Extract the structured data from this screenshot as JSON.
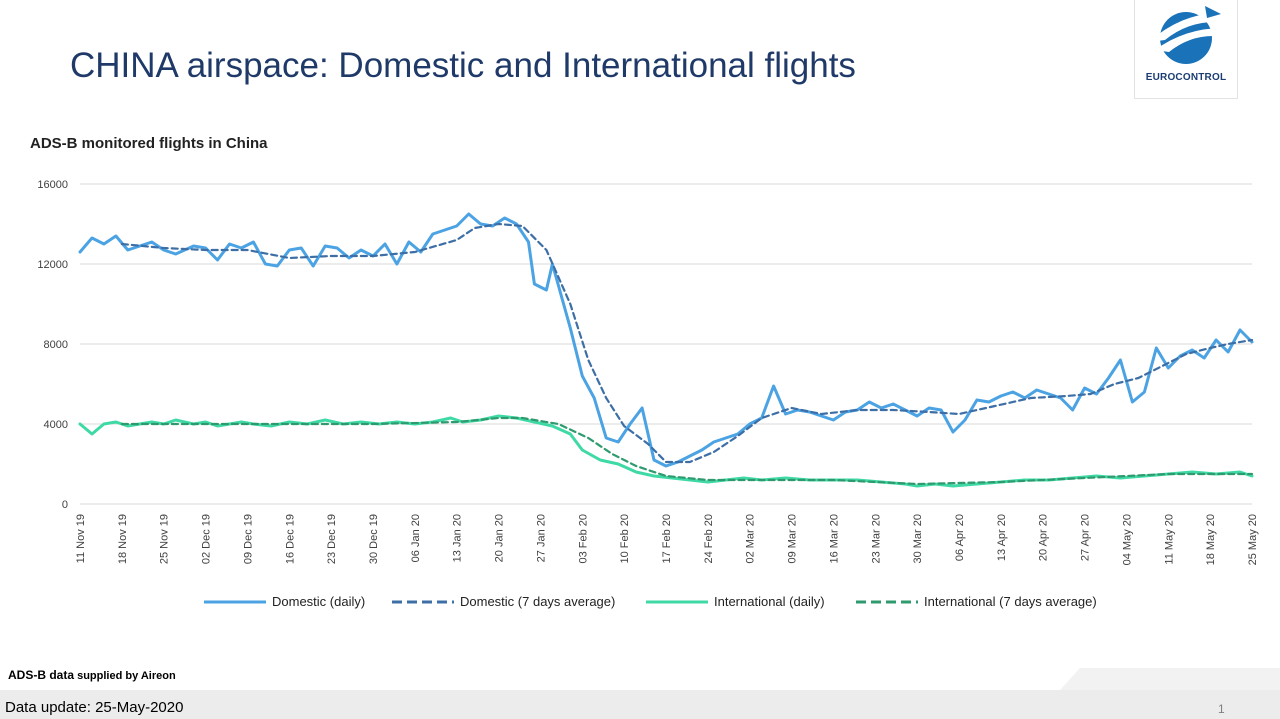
{
  "slide": {
    "title": "CHINA airspace: Domestic and International flights",
    "logo_text": "EUROCONTROL",
    "source_prefix": "ADS-B data",
    "source_suffix": " supplied by Aireon",
    "update_note": "Data update: 25-May-2020",
    "page_number": "1"
  },
  "colors": {
    "title": "#1f3a68",
    "domestic_daily": "#4ba3e3",
    "domestic_avg": "#3d6fa6",
    "international_daily": "#3fd9a5",
    "international_avg": "#2f9a6e",
    "grid": "#d9d9d9"
  },
  "chart_data": {
    "type": "line",
    "title": "ADS-B monitored flights in China",
    "x_start": "2019-11-11",
    "x_end": "2020-05-25",
    "x_ticks": [
      "11 Nov 19",
      "18 Nov 19",
      "25 Nov 19",
      "02 Dec 19",
      "09 Dec 19",
      "16 Dec 19",
      "23 Dec 19",
      "30 Dec 19",
      "06 Jan 20",
      "13 Jan 20",
      "20 Jan 20",
      "27 Jan 20",
      "03 Feb 20",
      "10 Feb 20",
      "17 Feb 20",
      "24 Feb 20",
      "02 Mar 20",
      "09 Mar 20",
      "16 Mar 20",
      "23 Mar 20",
      "30 Mar 20",
      "06 Apr 20",
      "13 Apr 20",
      "20 Apr 20",
      "27 Apr 20",
      "04 May 20",
      "11 May 20",
      "18 May 20",
      "25 May 20"
    ],
    "y_ticks": [
      "0",
      "4000",
      "8000",
      "12000",
      "16000"
    ],
    "ylim": [
      0,
      16000
    ],
    "grid": true,
    "legend_position": "bottom",
    "series": [
      {
        "name": "Domestic (daily)",
        "style": "solid",
        "points": [
          [
            "2019-11-11",
            12600
          ],
          [
            "2019-11-13",
            13300
          ],
          [
            "2019-11-15",
            13000
          ],
          [
            "2019-11-17",
            13400
          ],
          [
            "2019-11-19",
            12700
          ],
          [
            "2019-11-21",
            12900
          ],
          [
            "2019-11-23",
            13100
          ],
          [
            "2019-11-25",
            12700
          ],
          [
            "2019-11-27",
            12500
          ],
          [
            "2019-11-30",
            12900
          ],
          [
            "2019-12-02",
            12800
          ],
          [
            "2019-12-04",
            12200
          ],
          [
            "2019-12-06",
            13000
          ],
          [
            "2019-12-08",
            12800
          ],
          [
            "2019-12-10",
            13100
          ],
          [
            "2019-12-12",
            12000
          ],
          [
            "2019-12-14",
            11900
          ],
          [
            "2019-12-16",
            12700
          ],
          [
            "2019-12-18",
            12800
          ],
          [
            "2019-12-20",
            11900
          ],
          [
            "2019-12-22",
            12900
          ],
          [
            "2019-12-24",
            12800
          ],
          [
            "2019-12-26",
            12300
          ],
          [
            "2019-12-28",
            12700
          ],
          [
            "2019-12-30",
            12400
          ],
          [
            "2020-01-01",
            13000
          ],
          [
            "2020-01-03",
            12000
          ],
          [
            "2020-01-05",
            13100
          ],
          [
            "2020-01-07",
            12600
          ],
          [
            "2020-01-09",
            13500
          ],
          [
            "2020-01-11",
            13700
          ],
          [
            "2020-01-13",
            13900
          ],
          [
            "2020-01-15",
            14500
          ],
          [
            "2020-01-17",
            14000
          ],
          [
            "2020-01-19",
            13900
          ],
          [
            "2020-01-21",
            14300
          ],
          [
            "2020-01-23",
            14000
          ],
          [
            "2020-01-25",
            13100
          ],
          [
            "2020-01-26",
            11000
          ],
          [
            "2020-01-28",
            10700
          ],
          [
            "2020-01-29",
            12000
          ],
          [
            "2020-02-01",
            8800
          ],
          [
            "2020-02-03",
            6400
          ],
          [
            "2020-02-05",
            5300
          ],
          [
            "2020-02-07",
            3300
          ],
          [
            "2020-02-09",
            3100
          ],
          [
            "2020-02-11",
            4000
          ],
          [
            "2020-02-13",
            4800
          ],
          [
            "2020-02-15",
            2200
          ],
          [
            "2020-02-17",
            1900
          ],
          [
            "2020-02-19",
            2100
          ],
          [
            "2020-02-21",
            2400
          ],
          [
            "2020-02-23",
            2700
          ],
          [
            "2020-02-25",
            3100
          ],
          [
            "2020-02-27",
            3300
          ],
          [
            "2020-02-29",
            3500
          ],
          [
            "2020-03-02",
            4000
          ],
          [
            "2020-03-04",
            4300
          ],
          [
            "2020-03-06",
            5900
          ],
          [
            "2020-03-08",
            4500
          ],
          [
            "2020-03-10",
            4700
          ],
          [
            "2020-03-12",
            4600
          ],
          [
            "2020-03-14",
            4400
          ],
          [
            "2020-03-16",
            4200
          ],
          [
            "2020-03-18",
            4600
          ],
          [
            "2020-03-20",
            4700
          ],
          [
            "2020-03-22",
            5100
          ],
          [
            "2020-03-24",
            4800
          ],
          [
            "2020-03-26",
            5000
          ],
          [
            "2020-03-28",
            4700
          ],
          [
            "2020-03-30",
            4400
          ],
          [
            "2020-04-01",
            4800
          ],
          [
            "2020-04-03",
            4700
          ],
          [
            "2020-04-05",
            3600
          ],
          [
            "2020-04-07",
            4200
          ],
          [
            "2020-04-09",
            5200
          ],
          [
            "2020-04-11",
            5100
          ],
          [
            "2020-04-13",
            5400
          ],
          [
            "2020-04-15",
            5600
          ],
          [
            "2020-04-17",
            5300
          ],
          [
            "2020-04-19",
            5700
          ],
          [
            "2020-04-21",
            5500
          ],
          [
            "2020-04-23",
            5300
          ],
          [
            "2020-04-25",
            4700
          ],
          [
            "2020-04-27",
            5800
          ],
          [
            "2020-04-29",
            5500
          ],
          [
            "2020-05-01",
            6300
          ],
          [
            "2020-05-03",
            7200
          ],
          [
            "2020-05-05",
            5100
          ],
          [
            "2020-05-07",
            5600
          ],
          [
            "2020-05-09",
            7800
          ],
          [
            "2020-05-11",
            6800
          ],
          [
            "2020-05-13",
            7400
          ],
          [
            "2020-05-15",
            7700
          ],
          [
            "2020-05-17",
            7300
          ],
          [
            "2020-05-19",
            8200
          ],
          [
            "2020-05-21",
            7600
          ],
          [
            "2020-05-23",
            8700
          ],
          [
            "2020-05-25",
            8100
          ]
        ]
      },
      {
        "name": "Domestic (7 days average)",
        "style": "dashed",
        "points": [
          [
            "2019-11-18",
            13000
          ],
          [
            "2019-11-25",
            12800
          ],
          [
            "2019-12-02",
            12700
          ],
          [
            "2019-12-09",
            12700
          ],
          [
            "2019-12-16",
            12300
          ],
          [
            "2019-12-23",
            12400
          ],
          [
            "2019-12-30",
            12400
          ],
          [
            "2020-01-06",
            12600
          ],
          [
            "2020-01-13",
            13200
          ],
          [
            "2020-01-16",
            13800
          ],
          [
            "2020-01-20",
            14000
          ],
          [
            "2020-01-24",
            13900
          ],
          [
            "2020-01-28",
            12700
          ],
          [
            "2020-02-01",
            10000
          ],
          [
            "2020-02-04",
            7200
          ],
          [
            "2020-02-07",
            5300
          ],
          [
            "2020-02-10",
            3900
          ],
          [
            "2020-02-14",
            3000
          ],
          [
            "2020-02-17",
            2100
          ],
          [
            "2020-02-21",
            2100
          ],
          [
            "2020-02-25",
            2600
          ],
          [
            "2020-02-29",
            3400
          ],
          [
            "2020-03-04",
            4300
          ],
          [
            "2020-03-09",
            4800
          ],
          [
            "2020-03-14",
            4500
          ],
          [
            "2020-03-20",
            4700
          ],
          [
            "2020-03-26",
            4700
          ],
          [
            "2020-04-01",
            4600
          ],
          [
            "2020-04-06",
            4500
          ],
          [
            "2020-04-12",
            4900
          ],
          [
            "2020-04-18",
            5300
          ],
          [
            "2020-04-24",
            5400
          ],
          [
            "2020-04-28",
            5500
          ],
          [
            "2020-05-02",
            6000
          ],
          [
            "2020-05-06",
            6300
          ],
          [
            "2020-05-10",
            6900
          ],
          [
            "2020-05-14",
            7500
          ],
          [
            "2020-05-18",
            7800
          ],
          [
            "2020-05-21",
            8000
          ],
          [
            "2020-05-25",
            8200
          ]
        ]
      },
      {
        "name": "International (daily)",
        "style": "solid",
        "points": [
          [
            "2019-11-11",
            4000
          ],
          [
            "2019-11-13",
            3500
          ],
          [
            "2019-11-15",
            4000
          ],
          [
            "2019-11-17",
            4100
          ],
          [
            "2019-11-19",
            3900
          ],
          [
            "2019-11-21",
            4000
          ],
          [
            "2019-11-23",
            4100
          ],
          [
            "2019-11-25",
            4000
          ],
          [
            "2019-11-27",
            4200
          ],
          [
            "2019-11-30",
            4000
          ],
          [
            "2019-12-02",
            4100
          ],
          [
            "2019-12-04",
            3900
          ],
          [
            "2019-12-06",
            4000
          ],
          [
            "2019-12-08",
            4100
          ],
          [
            "2019-12-10",
            4000
          ],
          [
            "2019-12-13",
            3900
          ],
          [
            "2019-12-16",
            4100
          ],
          [
            "2019-12-19",
            4000
          ],
          [
            "2019-12-22",
            4200
          ],
          [
            "2019-12-25",
            4000
          ],
          [
            "2019-12-28",
            4100
          ],
          [
            "2019-12-31",
            4000
          ],
          [
            "2020-01-03",
            4100
          ],
          [
            "2020-01-06",
            4000
          ],
          [
            "2020-01-09",
            4100
          ],
          [
            "2020-01-12",
            4300
          ],
          [
            "2020-01-14",
            4100
          ],
          [
            "2020-01-17",
            4200
          ],
          [
            "2020-01-20",
            4400
          ],
          [
            "2020-01-23",
            4300
          ],
          [
            "2020-01-26",
            4100
          ],
          [
            "2020-01-29",
            3900
          ],
          [
            "2020-02-01",
            3500
          ],
          [
            "2020-02-03",
            2700
          ],
          [
            "2020-02-06",
            2200
          ],
          [
            "2020-02-09",
            2000
          ],
          [
            "2020-02-12",
            1600
          ],
          [
            "2020-02-15",
            1400
          ],
          [
            "2020-02-18",
            1300
          ],
          [
            "2020-02-21",
            1200
          ],
          [
            "2020-02-24",
            1100
          ],
          [
            "2020-02-27",
            1200
          ],
          [
            "2020-03-01",
            1300
          ],
          [
            "2020-03-04",
            1200
          ],
          [
            "2020-03-08",
            1300
          ],
          [
            "2020-03-12",
            1200
          ],
          [
            "2020-03-16",
            1200
          ],
          [
            "2020-03-20",
            1200
          ],
          [
            "2020-03-24",
            1100
          ],
          [
            "2020-03-28",
            1000
          ],
          [
            "2020-03-30",
            900
          ],
          [
            "2020-04-02",
            1000
          ],
          [
            "2020-04-05",
            900
          ],
          [
            "2020-04-09",
            1000
          ],
          [
            "2020-04-13",
            1100
          ],
          [
            "2020-04-17",
            1200
          ],
          [
            "2020-04-21",
            1200
          ],
          [
            "2020-04-25",
            1300
          ],
          [
            "2020-04-29",
            1400
          ],
          [
            "2020-05-03",
            1300
          ],
          [
            "2020-05-07",
            1400
          ],
          [
            "2020-05-11",
            1500
          ],
          [
            "2020-05-15",
            1600
          ],
          [
            "2020-05-19",
            1500
          ],
          [
            "2020-05-23",
            1600
          ],
          [
            "2020-05-25",
            1400
          ]
        ]
      },
      {
        "name": "International (7 days average)",
        "style": "dashed",
        "points": [
          [
            "2019-11-18",
            4000
          ],
          [
            "2019-12-02",
            4000
          ],
          [
            "2019-12-16",
            4000
          ],
          [
            "2019-12-30",
            4000
          ],
          [
            "2020-01-13",
            4100
          ],
          [
            "2020-01-20",
            4300
          ],
          [
            "2020-01-24",
            4300
          ],
          [
            "2020-01-30",
            4000
          ],
          [
            "2020-02-04",
            3300
          ],
          [
            "2020-02-08",
            2500
          ],
          [
            "2020-02-12",
            1900
          ],
          [
            "2020-02-17",
            1400
          ],
          [
            "2020-02-24",
            1200
          ],
          [
            "2020-03-02",
            1200
          ],
          [
            "2020-03-16",
            1200
          ],
          [
            "2020-03-30",
            1000
          ],
          [
            "2020-04-13",
            1100
          ],
          [
            "2020-04-27",
            1300
          ],
          [
            "2020-05-11",
            1500
          ],
          [
            "2020-05-25",
            1500
          ]
        ]
      }
    ]
  }
}
